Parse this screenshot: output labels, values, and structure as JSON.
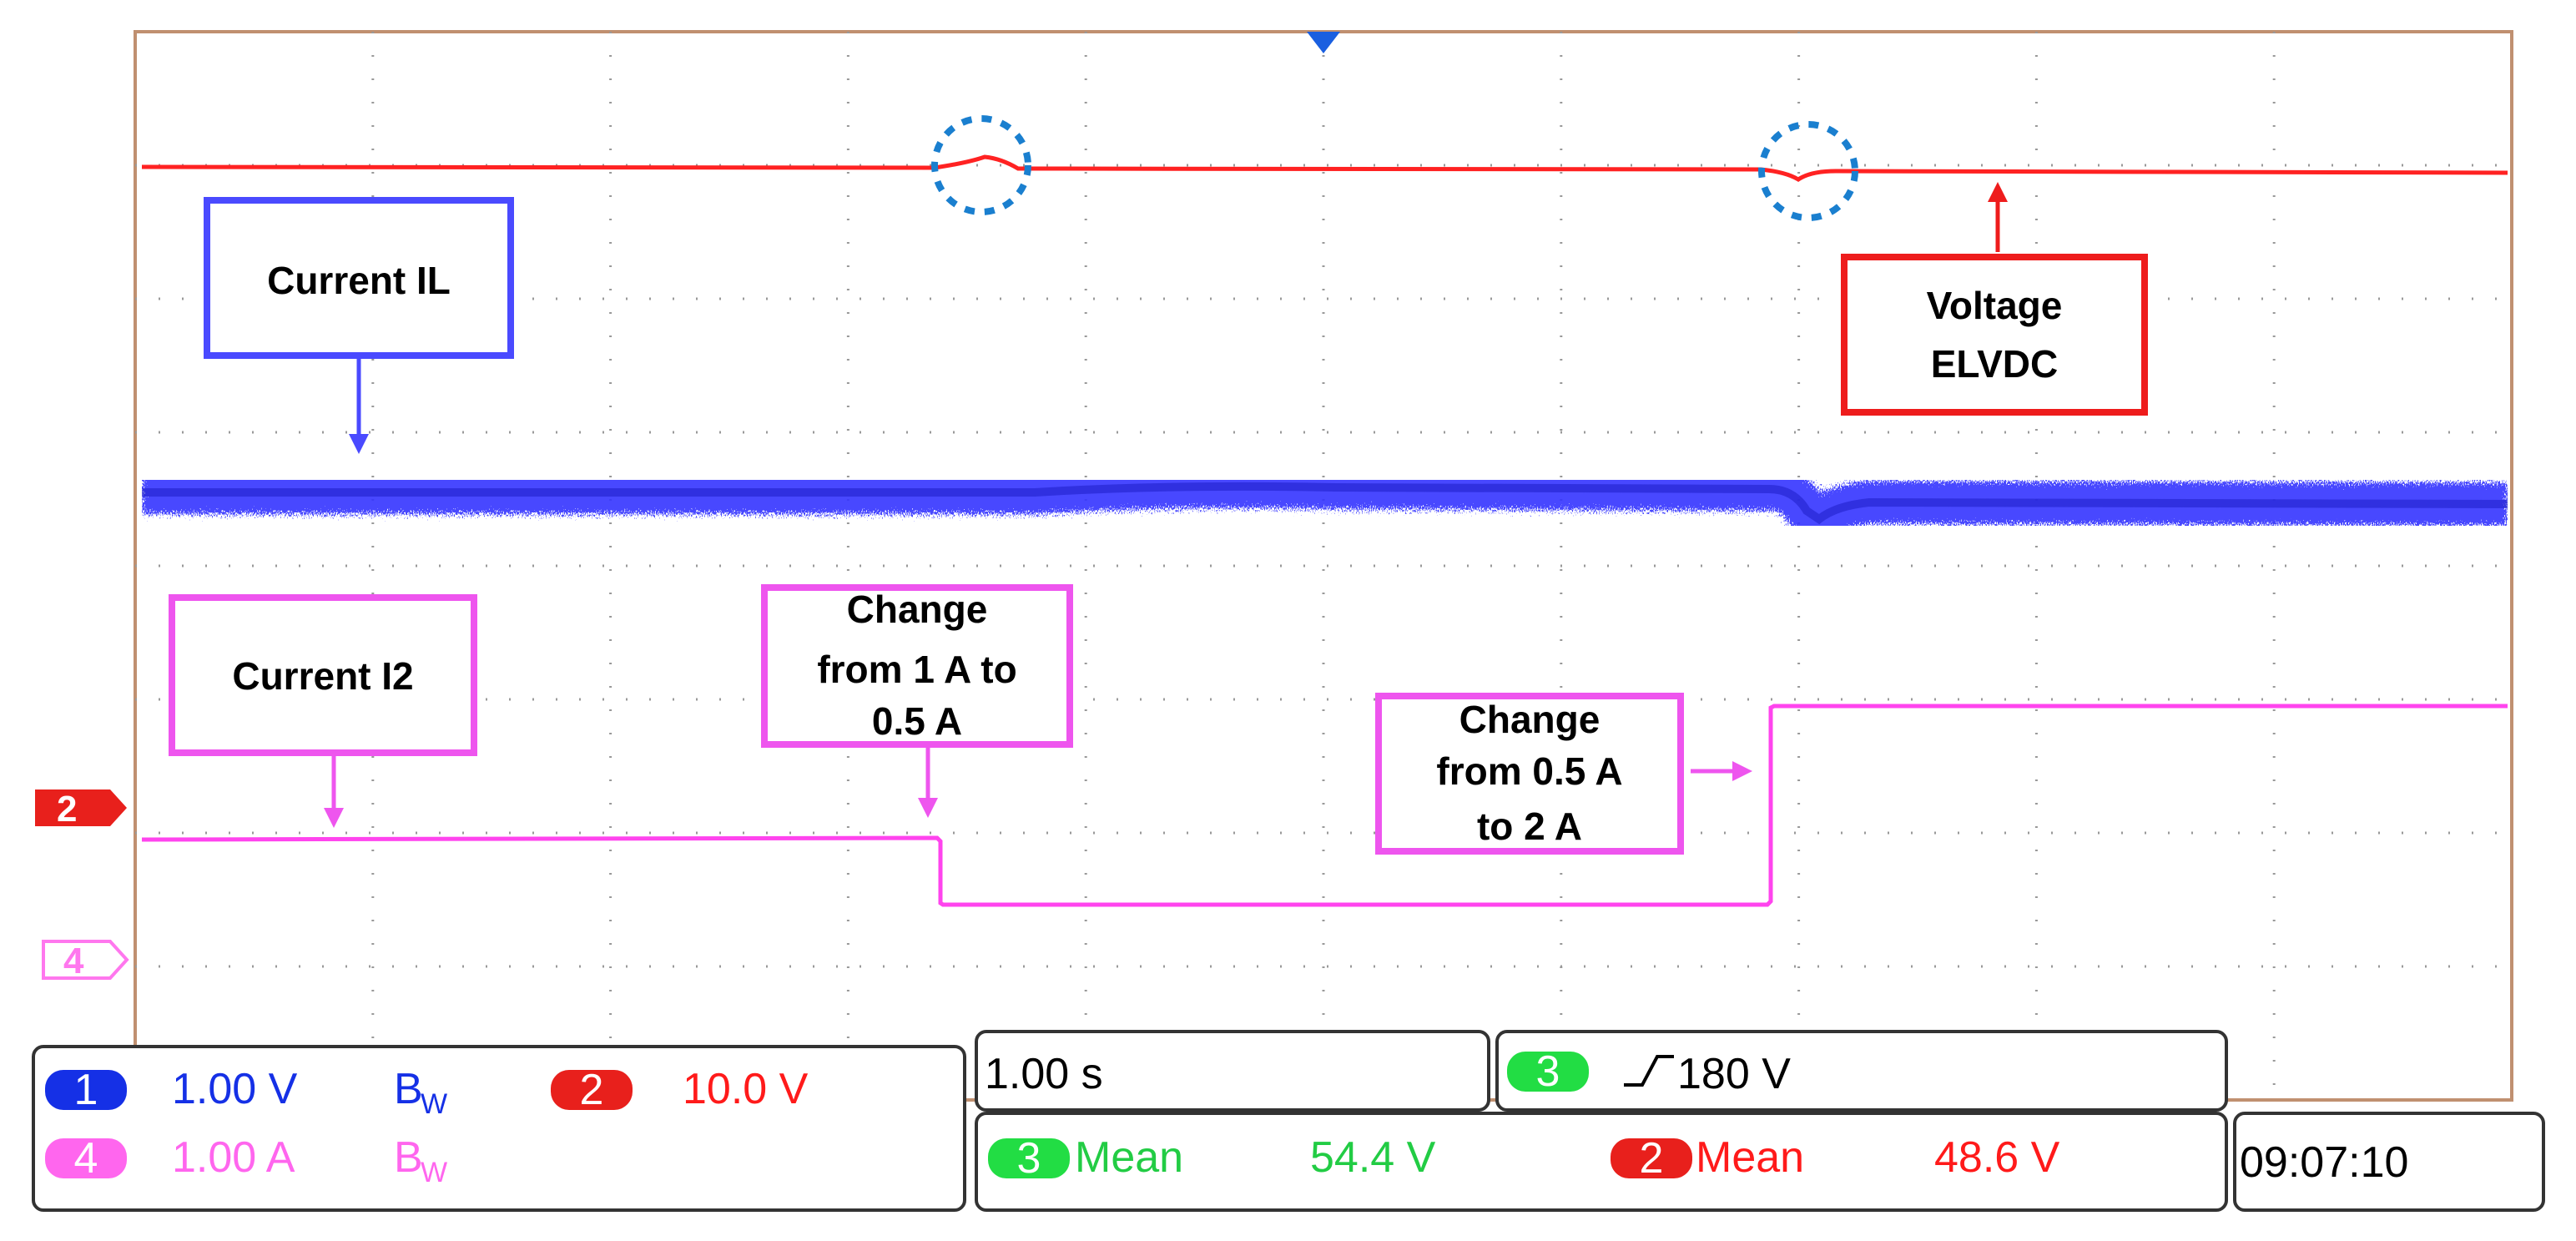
{
  "annotations": {
    "current_il": "Current IL",
    "voltage": [
      "Voltage",
      "ELVDC"
    ],
    "current_i2": "Current I2",
    "change1": [
      "Change",
      "from 1 A to",
      "0.5 A"
    ],
    "change2": [
      "Change",
      "from 0.5 A",
      "to 2 A"
    ]
  },
  "markers": {
    "ch2": "2",
    "ch4": "4"
  },
  "readouts": {
    "ch1": {
      "num": "1",
      "scale": "1.00 V",
      "bw": "B",
      "bw_sub": "W",
      "color": "#1530e6"
    },
    "ch2": {
      "num": "2",
      "scale": "10.0 V",
      "color": "#ff1a1a"
    },
    "ch4": {
      "num": "4",
      "scale": "1.00 A",
      "bw": "B",
      "bw_sub": "W",
      "color": "#ff55ee"
    },
    "timebase": "1.00 s",
    "trigger": {
      "num": "3",
      "level": "180 V",
      "color": "#22dd44"
    },
    "mean1": {
      "num": "3",
      "label": "Mean",
      "value": "54.4 V",
      "color": "#22dd44"
    },
    "mean2": {
      "num": "2",
      "label": "Mean",
      "value": "48.6 V",
      "color": "#ff1a1a"
    },
    "clock": "09:07:10"
  },
  "colors": {
    "voltage_trace": "#ff2222",
    "current_il_trace": "#3333ff",
    "current_i2_trace": "#ff44ee",
    "grid": "#999999",
    "frame": "#c09070",
    "event_circle": "#1a7fcf"
  }
}
